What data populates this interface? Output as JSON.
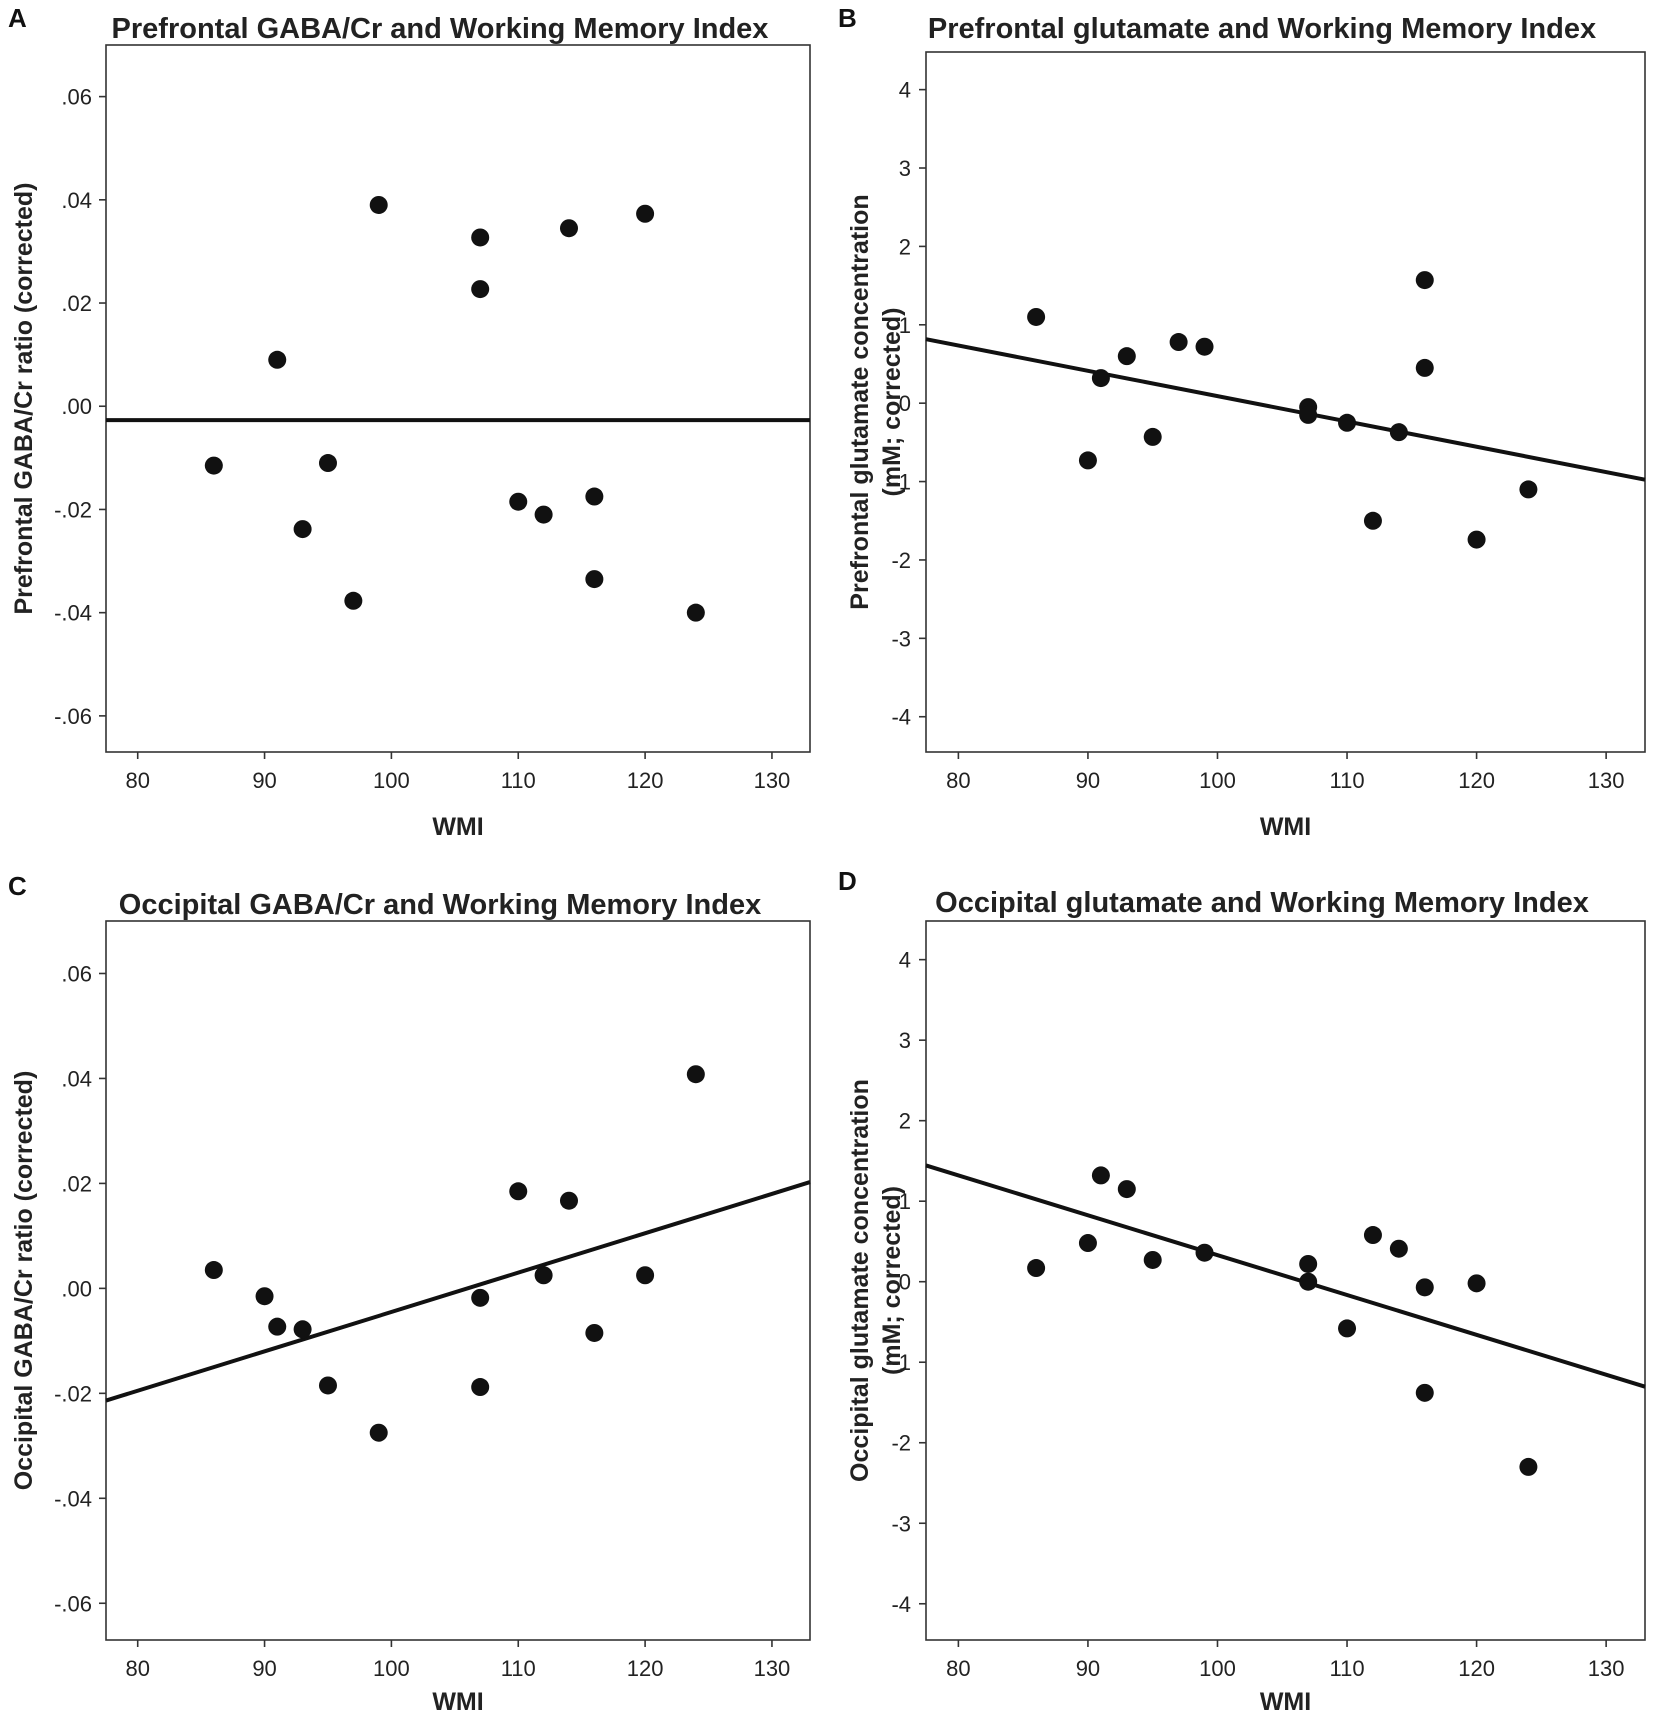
{
  "chart_data": [
    {
      "type": "scatter",
      "panel": "A",
      "title": "Prefrontal GABA/Cr and Working Memory Index",
      "xlabel": "WMI",
      "ylabel": [
        "Prefrontal GABA/Cr ratio (corrected)"
      ],
      "xlim": [
        77.5,
        133
      ],
      "ylim": [
        -0.067,
        0.07
      ],
      "xticks": [
        80,
        90,
        100,
        110,
        120,
        130
      ],
      "yticks": [
        -0.06,
        -0.04,
        -0.02,
        0.0,
        0.02,
        0.04,
        0.06
      ],
      "ytick_labels": [
        "-.06",
        "-.04",
        "-.02",
        ".00",
        ".02",
        ".04",
        ".06"
      ],
      "fit_line": {
        "slope": 0.0,
        "intercept": -0.0027
      },
      "points": [
        {
          "x": 86,
          "y": -0.0115
        },
        {
          "x": 91,
          "y": 0.009
        },
        {
          "x": 93,
          "y": -0.0238
        },
        {
          "x": 95,
          "y": -0.011
        },
        {
          "x": 97,
          "y": -0.0377
        },
        {
          "x": 99,
          "y": 0.039
        },
        {
          "x": 107,
          "y": 0.0327
        },
        {
          "x": 107,
          "y": 0.0227
        },
        {
          "x": 110,
          "y": -0.0185
        },
        {
          "x": 112,
          "y": -0.021
        },
        {
          "x": 114,
          "y": 0.0345
        },
        {
          "x": 116,
          "y": -0.0175
        },
        {
          "x": 116,
          "y": -0.0335
        },
        {
          "x": 120,
          "y": 0.0373
        },
        {
          "x": 124,
          "y": -0.04
        }
      ]
    },
    {
      "type": "scatter",
      "panel": "B",
      "title": "Prefrontal glutamate and Working Memory Index",
      "xlabel": "WMI",
      "ylabel": [
        "Prefrontal glutamate concentration",
        "(mM; corrected)"
      ],
      "xlim": [
        77.5,
        133
      ],
      "ylim": [
        -4.45,
        4.48
      ],
      "xticks": [
        80,
        90,
        100,
        110,
        120,
        130
      ],
      "yticks": [
        -4,
        -3,
        -2,
        -1,
        0,
        1,
        2,
        3,
        4
      ],
      "ytick_labels": [
        "-4",
        "-3",
        "-2",
        "-1",
        "0",
        "1",
        "2",
        "3",
        "4"
      ],
      "fit_line": {
        "slope": -0.0323,
        "intercept": 3.32
      },
      "points": [
        {
          "x": 86,
          "y": 1.1
        },
        {
          "x": 90,
          "y": -0.73
        },
        {
          "x": 91,
          "y": 0.32
        },
        {
          "x": 93,
          "y": 0.6
        },
        {
          "x": 95,
          "y": -0.43
        },
        {
          "x": 97,
          "y": 0.78
        },
        {
          "x": 99,
          "y": 0.72
        },
        {
          "x": 107,
          "y": -0.05
        },
        {
          "x": 107,
          "y": -0.15
        },
        {
          "x": 110,
          "y": -0.25
        },
        {
          "x": 112,
          "y": -1.5
        },
        {
          "x": 114,
          "y": -0.37
        },
        {
          "x": 116,
          "y": 1.57
        },
        {
          "x": 116,
          "y": 0.45
        },
        {
          "x": 120,
          "y": -1.74
        },
        {
          "x": 124,
          "y": -1.1
        }
      ]
    },
    {
      "type": "scatter",
      "panel": "C",
      "title": "Occipital GABA/Cr and Working Memory Index",
      "xlabel": "WMI",
      "ylabel": [
        "Occipital GABA/Cr ratio (corrected)"
      ],
      "xlim": [
        77.5,
        133
      ],
      "ylim": [
        -0.067,
        0.07
      ],
      "xticks": [
        80,
        90,
        100,
        110,
        120,
        130
      ],
      "yticks": [
        -0.06,
        -0.04,
        -0.02,
        0.0,
        0.02,
        0.04,
        0.06
      ],
      "ytick_labels": [
        "-.06",
        "-.04",
        "-.02",
        ".00",
        ".02",
        ".04",
        ".06"
      ],
      "fit_line": {
        "slope": 0.00075,
        "intercept": -0.0795
      },
      "points": [
        {
          "x": 86,
          "y": 0.0035
        },
        {
          "x": 90,
          "y": -0.0015
        },
        {
          "x": 91,
          "y": -0.0073
        },
        {
          "x": 93,
          "y": -0.0078
        },
        {
          "x": 95,
          "y": -0.0185
        },
        {
          "x": 99,
          "y": -0.0275
        },
        {
          "x": 107,
          "y": -0.0018
        },
        {
          "x": 107,
          "y": -0.0188
        },
        {
          "x": 110,
          "y": 0.0185
        },
        {
          "x": 112,
          "y": 0.0025
        },
        {
          "x": 114,
          "y": 0.0167
        },
        {
          "x": 116,
          "y": -0.0085
        },
        {
          "x": 120,
          "y": 0.0025
        },
        {
          "x": 124,
          "y": 0.0408
        }
      ]
    },
    {
      "type": "scatter",
      "panel": "D",
      "title": "Occipital glutamate and Working Memory Index",
      "xlabel": "WMI",
      "ylabel": [
        "Occipital glutamate concentration",
        "(mM; corrected)"
      ],
      "xlim": [
        77.5,
        133
      ],
      "ylim": [
        -4.45,
        4.48
      ],
      "xticks": [
        80,
        90,
        100,
        110,
        120,
        130
      ],
      "yticks": [
        -4,
        -3,
        -2,
        -1,
        0,
        1,
        2,
        3,
        4
      ],
      "ytick_labels": [
        "-4",
        "-3",
        "-2",
        "-1",
        "0",
        "1",
        "2",
        "3",
        "4"
      ],
      "fit_line": {
        "slope": -0.0495,
        "intercept": 5.28
      },
      "points": [
        {
          "x": 86,
          "y": 0.17
        },
        {
          "x": 90,
          "y": 0.48
        },
        {
          "x": 91,
          "y": 1.32
        },
        {
          "x": 93,
          "y": 1.15
        },
        {
          "x": 95,
          "y": 0.27
        },
        {
          "x": 99,
          "y": 0.36
        },
        {
          "x": 107,
          "y": 0.22
        },
        {
          "x": 107,
          "y": 0.0
        },
        {
          "x": 110,
          "y": -0.58
        },
        {
          "x": 112,
          "y": 0.58
        },
        {
          "x": 114,
          "y": 0.41
        },
        {
          "x": 116,
          "y": -0.07
        },
        {
          "x": 116,
          "y": -1.38
        },
        {
          "x": 120,
          "y": -0.02
        },
        {
          "x": 124,
          "y": -2.3
        }
      ]
    }
  ]
}
